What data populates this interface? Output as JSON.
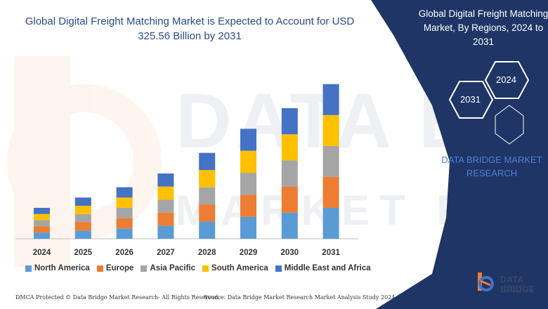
{
  "title": "Global Digital Freight Matching Market is Expected to Account for USD 325.56 Billion by 2031",
  "right_panel": {
    "title": "Global Digital Freight Matching Market, By Regions, 2024 to 2031",
    "hex_year_a": "2024",
    "hex_year_b": "2031",
    "brand": "DATA BRIDGE MARKET RESEARCH"
  },
  "footer": {
    "left": "DMCA Protected © Data Bridge Market Research- All Rights Reserved.",
    "right": "Source: Data Bridge Market Research Market Analysis Study 2024"
  },
  "logo": {
    "name": "DATA BRIDGE",
    "sub": "MARKET RESEARCH"
  },
  "colors": {
    "north_america": "#5b9bd5",
    "europe": "#ed7d31",
    "asia_pacific": "#a5a5a5",
    "south_america": "#ffc000",
    "middle_east_africa": "#4472c4",
    "navy": "#1f3566"
  },
  "chart_data": {
    "type": "bar",
    "stacked": true,
    "categories": [
      "2024",
      "2025",
      "2026",
      "2027",
      "2028",
      "2029",
      "2030",
      "2031"
    ],
    "series": [
      {
        "name": "North America",
        "values": [
          9,
          12,
          15,
          19,
          25,
          32,
          38,
          45
        ]
      },
      {
        "name": "Europe",
        "values": [
          9,
          12,
          15,
          19,
          25,
          32,
          38,
          45
        ]
      },
      {
        "name": "Asia Pacific",
        "values": [
          9,
          12,
          15,
          19,
          25,
          32,
          38,
          45
        ]
      },
      {
        "name": "South America",
        "values": [
          9,
          12,
          15,
          19,
          25,
          32,
          38,
          45
        ]
      },
      {
        "name": "Middle East and Africa",
        "values": [
          9,
          12,
          15,
          19,
          25,
          32,
          38,
          45
        ]
      }
    ],
    "ylim": [
      0,
      235
    ],
    "legend": "bottom",
    "grid": false
  }
}
